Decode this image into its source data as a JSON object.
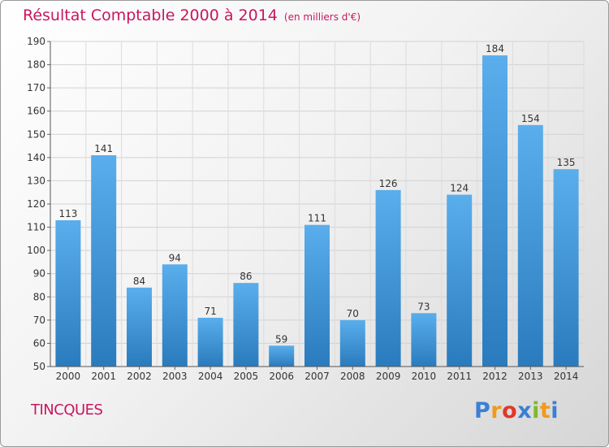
{
  "header": {
    "title": "Résultat Comptable 2000 à 2014",
    "subtitle": "(en milliers d'€)"
  },
  "footer": {
    "commune": "TINCQUES",
    "brand_letters": [
      "P",
      "r",
      "o",
      "x",
      "i",
      "t",
      "i"
    ],
    "brand_colors": [
      "#3b7fd4",
      "#f19a1c",
      "#e2362b",
      "#3b7fd4",
      "#7cbb2a",
      "#f19a1c",
      "#3b7fd4"
    ]
  },
  "colors": {
    "title": "#c8175f",
    "bar_light": "#5aaeec",
    "bar_dark": "#2a7bbd"
  },
  "chart_data": {
    "type": "bar",
    "title": "Résultat Comptable 2000 à 2014",
    "categories": [
      "2000",
      "2001",
      "2002",
      "2003",
      "2004",
      "2005",
      "2006",
      "2007",
      "2008",
      "2009",
      "2010",
      "2011",
      "2012",
      "2013",
      "2014"
    ],
    "values": [
      113,
      141,
      84,
      94,
      71,
      86,
      59,
      111,
      70,
      126,
      73,
      124,
      184,
      154,
      135
    ],
    "ylim": [
      50,
      190
    ],
    "yticks": [
      50,
      60,
      70,
      80,
      90,
      100,
      110,
      120,
      130,
      140,
      150,
      160,
      170,
      180,
      190
    ],
    "grid": true,
    "data_labels": true
  }
}
